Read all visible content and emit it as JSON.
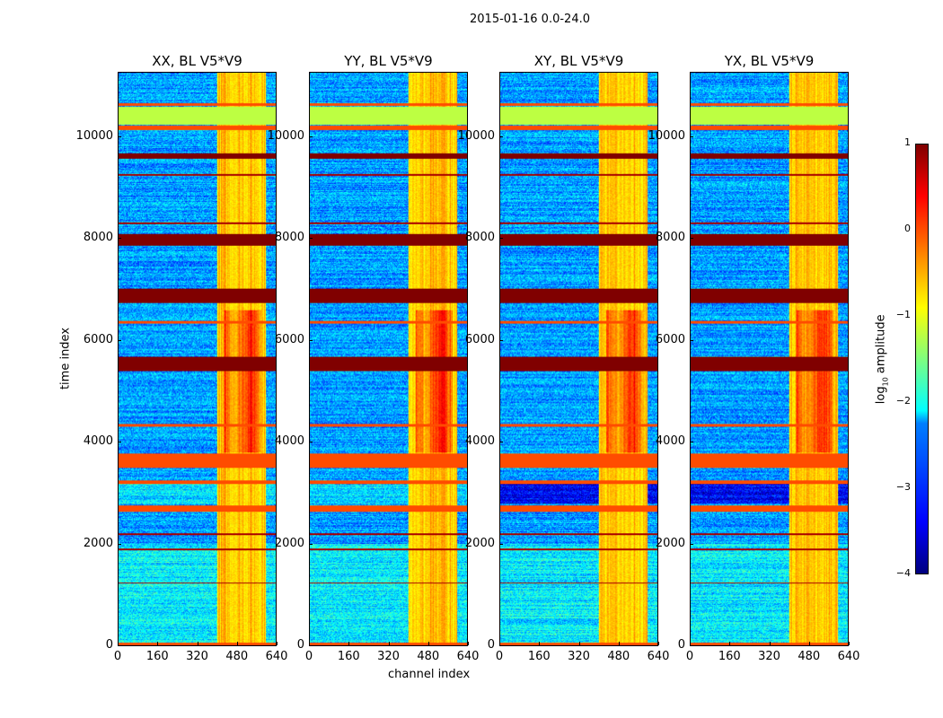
{
  "chart_data": {
    "type": "heatmap",
    "title": "2015-01-16 0.0-24.0",
    "xlabel": "channel index",
    "ylabel": "time index",
    "xlim": [
      0,
      640
    ],
    "ylim": [
      0,
      11270
    ],
    "xticks": [
      0,
      160,
      320,
      480,
      640
    ],
    "yticks": [
      0,
      2000,
      4000,
      6000,
      8000,
      10000
    ],
    "panels": [
      {
        "title": "XX, BL V5*V9",
        "cross": false
      },
      {
        "title": "YY, BL V5*V9",
        "cross": false
      },
      {
        "title": "XY, BL V5*V9",
        "cross": true
      },
      {
        "title": "YX, BL V5*V9",
        "cross": true
      }
    ],
    "colorbar": {
      "label": "log10 amplitude",
      "label_main": "log",
      "label_sub": "10",
      "label_rest": " amplitude",
      "range": [
        -4,
        1
      ],
      "ticks": [
        1,
        0,
        -1,
        -2,
        -3,
        -4
      ],
      "colormap": "jet"
    },
    "flagged_bands": [
      {
        "t": [
          5400,
          5680
        ],
        "value": 1
      },
      {
        "t": [
          6750,
          7020
        ],
        "value": 1
      },
      {
        "t": [
          7870,
          8100
        ],
        "value": 1
      },
      {
        "t": [
          9580,
          9700
        ],
        "value": 1
      },
      {
        "t": [
          3500,
          3780
        ],
        "value": 0
      },
      {
        "t": [
          2640,
          2760
        ],
        "value": 0
      },
      {
        "t": [
          3190,
          3250
        ],
        "value": 0
      },
      {
        "t": [
          4320,
          4370
        ],
        "value": 0
      },
      {
        "t": [
          6340,
          6400
        ],
        "value": 0
      },
      {
        "t": [
          10250,
          10600
        ],
        "value": -1.2
      },
      {
        "t": [
          10150,
          10230
        ],
        "value": 0
      },
      {
        "t": [
          10620,
          10680
        ],
        "value": 0
      },
      {
        "t": [
          0,
          60
        ],
        "value": 0
      },
      {
        "t": [
          1880,
          1920
        ],
        "value": 0.8
      },
      {
        "t": [
          2180,
          2210
        ],
        "value": 0.8
      },
      {
        "t": [
          1220,
          1250
        ],
        "value": 0.8
      },
      {
        "t": [
          8300,
          8330
        ],
        "value": 0.8
      },
      {
        "t": [
          9250,
          9280
        ],
        "value": 0.8
      }
    ],
    "regions": {
      "low_channels": [
        0,
        400
      ],
      "rfi_channels": [
        400,
        600
      ],
      "background_level": -2.6,
      "rfi_level": -0.6
    }
  }
}
